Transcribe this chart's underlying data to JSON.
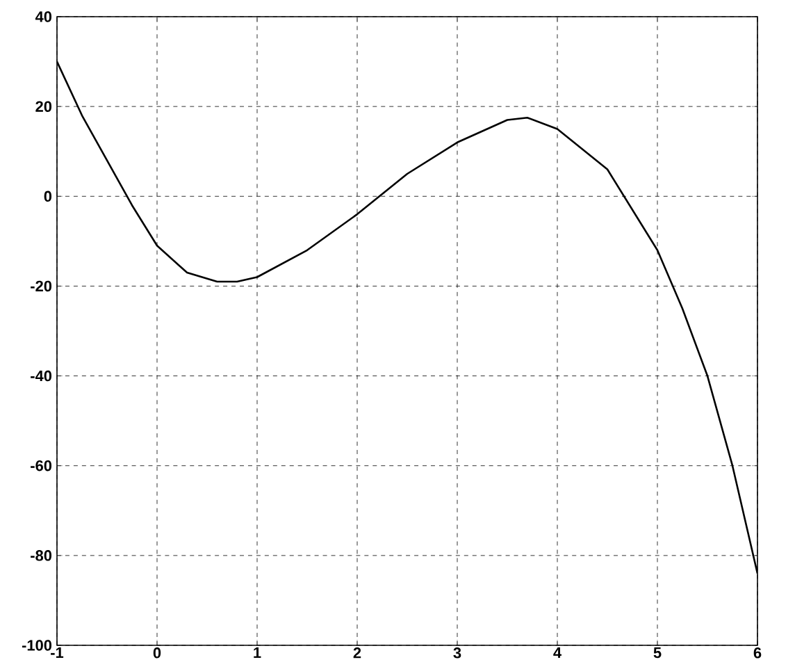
{
  "chart_data": {
    "type": "line",
    "x": [
      -1,
      -0.75,
      -0.5,
      -0.25,
      0,
      0.3,
      0.6,
      0.8,
      1,
      1.5,
      2,
      2.5,
      3,
      3.5,
      3.7,
      4,
      4.5,
      5,
      5.25,
      5.5,
      5.75,
      6
    ],
    "series": [
      {
        "color": "#000000",
        "values": [
          30,
          18,
          8,
          -2,
          -11,
          -17,
          -19,
          -19,
          -18,
          -12,
          -4,
          5,
          12,
          17,
          17.5,
          15,
          6,
          -12,
          -25,
          -40,
          -60,
          -84
        ]
      }
    ],
    "xlim": [
      -1,
      6
    ],
    "ylim": [
      -100,
      40
    ],
    "xticks": [
      -1,
      0,
      1,
      2,
      3,
      4,
      5,
      6
    ],
    "yticks": [
      -100,
      -80,
      -60,
      -40,
      -20,
      0,
      20,
      40
    ],
    "grid": true,
    "line_style": "solid",
    "marker": "none"
  }
}
